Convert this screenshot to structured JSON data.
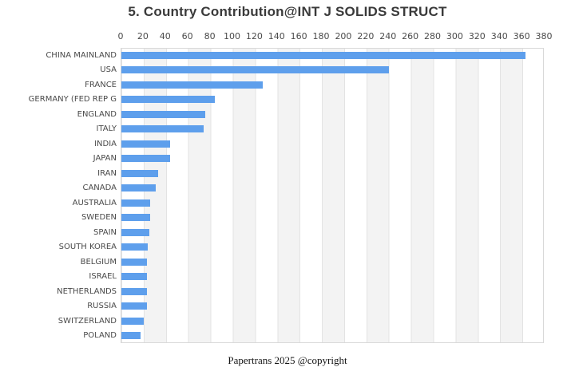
{
  "page": {
    "title": "5. Country Contribution@INT J SOLIDS STRUCT",
    "caption": "Papertrans 2025 @copyright"
  },
  "chart_data": {
    "type": "bar",
    "orientation": "horizontal",
    "title": "5. Country Contribution@INT J SOLIDS STRUCT",
    "categories": [
      "CHINA MAINLAND",
      "USA",
      "FRANCE",
      "GERMANY (FED REP G",
      "ENGLAND",
      "ITALY",
      "INDIA",
      "JAPAN",
      "IRAN",
      "CANADA",
      "AUSTRALIA",
      "SWEDEN",
      "SPAIN",
      "SOUTH KOREA",
      "BELGIUM",
      "ISRAEL",
      "NETHERLANDS",
      "RUSSIA",
      "SWITZERLAND",
      "POLAND"
    ],
    "values": [
      363,
      240,
      127,
      84,
      75,
      74,
      44,
      44,
      33,
      31,
      26,
      26,
      25,
      24,
      23,
      23,
      23,
      23,
      20,
      17
    ],
    "xlabel": "",
    "ylabel": "",
    "xlim": [
      0,
      380
    ],
    "xticks": [
      0,
      20,
      40,
      60,
      80,
      100,
      120,
      140,
      160,
      180,
      200,
      220,
      240,
      260,
      280,
      300,
      320,
      340,
      360,
      380
    ],
    "xaxis_position": "top",
    "grid": "alternating vertical stripes every 20 units",
    "legend": "none",
    "bar_color": "#5E9FEC",
    "caption": "Papertrans 2025 @copyright"
  }
}
